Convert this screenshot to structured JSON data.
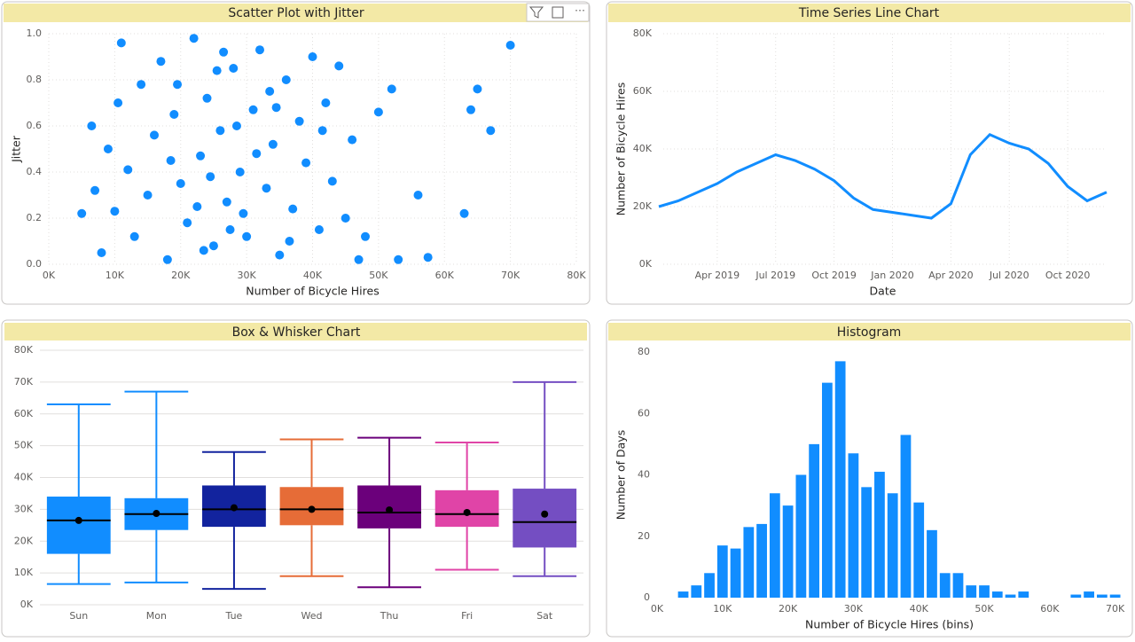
{
  "chart_data": [
    {
      "type": "scatter",
      "title": "Scatter Plot with Jitter",
      "x_label": "Number of Bicycle Hires",
      "y_label": "Jitter",
      "color": "#118dff",
      "x": [
        5000,
        6500,
        7000,
        8000,
        9000,
        10000,
        10500,
        11000,
        12000,
        13000,
        14000,
        15000,
        16000,
        17000,
        18000,
        19000,
        20000,
        21000,
        22000,
        23000,
        24000,
        25000,
        26000,
        27000,
        28000,
        29000,
        30000,
        31000,
        32000,
        33000,
        34000,
        35000,
        36000,
        37000,
        38000,
        39000,
        40000,
        41000,
        42000,
        43000,
        44000,
        45000,
        46000,
        47000,
        48000,
        50000,
        52000,
        53000,
        56000,
        57500,
        63000,
        64000,
        65000,
        67000,
        70000,
        18500,
        22500,
        24500,
        26500,
        27500,
        28500,
        31500,
        33500,
        36500,
        41500,
        25500,
        19500,
        29500,
        34500,
        23500
      ],
      "values": [
        0.22,
        0.6,
        0.32,
        0.05,
        0.5,
        0.23,
        0.7,
        0.96,
        0.41,
        0.12,
        0.78,
        0.3,
        0.56,
        0.88,
        0.02,
        0.65,
        0.35,
        0.18,
        0.98,
        0.47,
        0.72,
        0.08,
        0.58,
        0.27,
        0.85,
        0.4,
        0.12,
        0.67,
        0.93,
        0.33,
        0.52,
        0.04,
        0.8,
        0.24,
        0.62,
        0.44,
        0.9,
        0.15,
        0.7,
        0.36,
        0.86,
        0.2,
        0.54,
        0.02,
        0.12,
        0.66,
        0.76,
        0.02,
        0.3,
        0.03,
        0.22,
        0.67,
        0.76,
        0.58,
        0.95,
        0.45,
        0.25,
        0.38,
        0.92,
        0.15,
        0.6,
        0.48,
        0.75,
        0.1,
        0.58,
        0.84,
        0.78,
        0.22,
        0.68,
        0.06
      ],
      "xlim": [
        0,
        80000
      ],
      "ylim": [
        0,
        1
      ],
      "xticks": [
        {
          "value": 0,
          "label": "0K"
        },
        {
          "value": 10000,
          "label": "10K"
        },
        {
          "value": 20000,
          "label": "20K"
        },
        {
          "value": 30000,
          "label": "30K"
        },
        {
          "value": 40000,
          "label": "40K"
        },
        {
          "value": 50000,
          "label": "50K"
        },
        {
          "value": 60000,
          "label": "60K"
        },
        {
          "value": 70000,
          "label": "70K"
        },
        {
          "value": 80000,
          "label": "80K"
        }
      ],
      "yticks": [
        {
          "value": 0,
          "label": "0.0"
        },
        0.2,
        0.4,
        0.6,
        0.8,
        {
          "value": 1,
          "label": "1.0"
        }
      ],
      "grid": true
    },
    {
      "type": "line",
      "title": "Time Series Line Chart",
      "x_label": "Date",
      "y_label": "Number of Bicycle Hires",
      "color": "#118dff",
      "x": [
        "2019-01",
        "2019-02",
        "2019-03",
        "2019-04",
        "2019-05",
        "2019-06",
        "2019-07",
        "2019-08",
        "2019-09",
        "2019-10",
        "2019-11",
        "2019-12",
        "2020-01",
        "2020-02",
        "2020-03",
        "2020-04",
        "2020-05",
        "2020-06",
        "2020-07",
        "2020-08",
        "2020-09",
        "2020-10",
        "2020-11",
        "2020-12"
      ],
      "values": [
        20000,
        22000,
        25000,
        28000,
        32000,
        35000,
        38000,
        36000,
        33000,
        29000,
        23000,
        19000,
        18000,
        17000,
        16000,
        21000,
        38000,
        45000,
        42000,
        40000,
        35000,
        27000,
        22000,
        25000
      ],
      "xlim": [
        "2019-01",
        "2020-12"
      ],
      "ylim": [
        0,
        80000
      ],
      "xticks": [
        {
          "value": "2019-04",
          "label": "Apr 2019"
        },
        {
          "value": "2019-07",
          "label": "Jul 2019"
        },
        {
          "value": "2019-10",
          "label": "Oct 2019"
        },
        {
          "value": "2020-01",
          "label": "Jan 2020"
        },
        {
          "value": "2020-04",
          "label": "Apr 2020"
        },
        {
          "value": "2020-07",
          "label": "Jul 2020"
        },
        {
          "value": "2020-10",
          "label": "Oct 2020"
        }
      ],
      "yticks": [
        {
          "value": 0,
          "label": "0K"
        },
        {
          "value": 20000,
          "label": "20K"
        },
        {
          "value": 40000,
          "label": "40K"
        },
        {
          "value": 60000,
          "label": "60K"
        },
        {
          "value": 80000,
          "label": "80K"
        }
      ],
      "grid": true
    },
    {
      "type": "box",
      "title": "Box & Whisker Chart",
      "categories": [
        "Sun",
        "Mon",
        "Tue",
        "Wed",
        "Thu",
        "Fri",
        "Sat"
      ],
      "min": [
        6500,
        7000,
        5000,
        9000,
        5500,
        11000,
        9000
      ],
      "q1": [
        16000,
        23500,
        24500,
        25000,
        24000,
        24500,
        18000
      ],
      "median": [
        26500,
        28500,
        30000,
        30000,
        29000,
        28500,
        26000
      ],
      "q3": [
        34000,
        33500,
        37500,
        37000,
        37500,
        36000,
        36500
      ],
      "max": [
        63000,
        67000,
        48000,
        52000,
        52500,
        51000,
        70000
      ],
      "mean": [
        26500,
        28700,
        30500,
        30000,
        29800,
        29000,
        28500
      ],
      "colors": [
        "#118dff",
        "#118dff",
        "#12239e",
        "#e66c37",
        "#6b007b",
        "#e044a7",
        "#744ec2"
      ],
      "ylim": [
        0,
        80000
      ],
      "yticks": [
        {
          "value": 0,
          "label": "0K"
        },
        {
          "value": 10000,
          "label": "10K"
        },
        {
          "value": 20000,
          "label": "20K"
        },
        {
          "value": 30000,
          "label": "30K"
        },
        {
          "value": 40000,
          "label": "40K"
        },
        {
          "value": 50000,
          "label": "50K"
        },
        {
          "value": 60000,
          "label": "60K"
        },
        {
          "value": 70000,
          "label": "70K"
        },
        {
          "value": 80000,
          "label": "80K"
        }
      ],
      "grid": true
    },
    {
      "type": "histogram",
      "title": "Histogram",
      "x_label": "Number of Bicycle Hires (bins)",
      "y_label": "Number of Days",
      "color": "#118dff",
      "bins": [
        3000,
        5000,
        7000,
        9000,
        11000,
        13000,
        15000,
        17000,
        19000,
        21000,
        23000,
        25000,
        27000,
        29000,
        31000,
        33000,
        35000,
        37000,
        39000,
        41000,
        43000,
        45000,
        47000,
        49000,
        51000,
        53000,
        55000,
        57000,
        59000,
        61000,
        63000,
        65000,
        67000,
        69000,
        71000
      ],
      "values": [
        2,
        4,
        8,
        17,
        16,
        23,
        24,
        34,
        30,
        40,
        50,
        70,
        77,
        47,
        36,
        41,
        34,
        53,
        31,
        22,
        8,
        8,
        4,
        4,
        2,
        1,
        2,
        0,
        0,
        0,
        1,
        2,
        1,
        1
      ],
      "xlim": [
        0,
        71000
      ],
      "ylim": [
        0,
        80
      ],
      "xticks": [
        {
          "value": 0,
          "label": "0K"
        },
        {
          "value": 10000,
          "label": "10K"
        },
        {
          "value": 20000,
          "label": "20K"
        },
        {
          "value": 30000,
          "label": "30K"
        },
        {
          "value": 40000,
          "label": "40K"
        },
        {
          "value": 50000,
          "label": "50K"
        },
        {
          "value": 60000,
          "label": "60K"
        },
        {
          "value": 70000,
          "label": "70K"
        }
      ],
      "yticks": [
        0,
        20,
        40,
        60,
        80
      ],
      "grid": false
    }
  ]
}
